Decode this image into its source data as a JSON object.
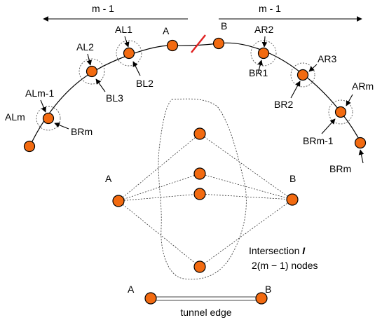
{
  "colors": {
    "node_fill": "#f26a10",
    "cut_marker": "#e02020",
    "node_stroke": "#000000"
  },
  "top_ring": {
    "span_left_label": "m - 1",
    "span_right_label": "m - 1",
    "endpoint_a": "A",
    "endpoint_b": "B",
    "left_top_labels": [
      "AL1",
      "AL2",
      "ALm-1",
      "ALm"
    ],
    "left_bottom_labels": [
      "BL2",
      "BL3",
      "BRm"
    ],
    "right_top_labels": [
      "AR2",
      "AR3",
      "ARm"
    ],
    "right_bottom_labels": [
      "BR1",
      "BR2",
      "BRm-1",
      "BRm"
    ]
  },
  "intersection": {
    "left_label": "A",
    "right_label": "B",
    "title_prefix": "Intersection ",
    "title_symbol": "I",
    "node_count": "2(m − 1) nodes"
  },
  "tunnel": {
    "left_label": "A",
    "right_label": "B",
    "caption": "tunnel edge"
  }
}
